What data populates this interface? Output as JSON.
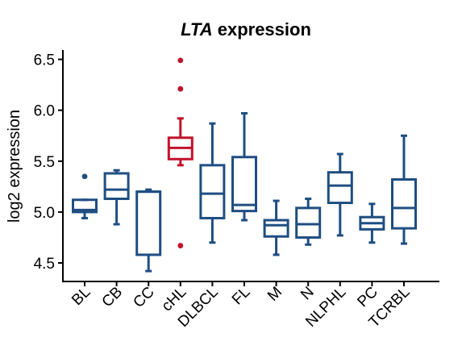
{
  "chart_data": {
    "type": "box",
    "title_gene": "LTA",
    "title_rest": "expression",
    "xlabel": "",
    "ylabel": "log2 expression",
    "ylim": [
      4.4,
      6.62
    ],
    "yticks": [
      "4.5",
      "5.0",
      "5.5",
      "6.0",
      "6.5"
    ],
    "ytick_values": [
      4.5,
      5.0,
      5.5,
      6.0,
      6.5
    ],
    "grid": false,
    "colors": {
      "default": "#1f4e82",
      "highlight": "#c0132c",
      "axis": "#000000"
    },
    "categories": [
      "BL",
      "CB",
      "CC",
      "cHL",
      "DLBCL",
      "FL",
      "M",
      "N",
      "NLPHL",
      "PC",
      "TCRBL"
    ],
    "boxes": [
      {
        "label": "BL",
        "whisker_low": 4.94,
        "q1": 5.0,
        "median": 5.02,
        "q3": 5.12,
        "whisker_high": 5.12,
        "outliers": [
          5.35
        ],
        "highlight": false
      },
      {
        "label": "CB",
        "whisker_low": 4.88,
        "q1": 5.13,
        "median": 5.22,
        "q3": 5.38,
        "whisker_high": 5.41,
        "outliers": [],
        "highlight": false
      },
      {
        "label": "CC",
        "whisker_low": 4.42,
        "q1": 4.58,
        "median": 5.2,
        "q3": 5.2,
        "whisker_high": 5.22,
        "outliers": [],
        "highlight": false
      },
      {
        "label": "cHL",
        "whisker_low": 5.46,
        "q1": 5.52,
        "median": 5.63,
        "q3": 5.73,
        "whisker_high": 5.92,
        "outliers": [
          6.49,
          6.21,
          4.67
        ],
        "highlight": true
      },
      {
        "label": "DLBCL",
        "whisker_low": 4.7,
        "q1": 4.94,
        "median": 5.18,
        "q3": 5.46,
        "whisker_high": 5.87,
        "outliers": [],
        "highlight": false
      },
      {
        "label": "FL",
        "whisker_low": 4.92,
        "q1": 5.01,
        "median": 5.07,
        "q3": 5.54,
        "whisker_high": 5.97,
        "outliers": [],
        "highlight": false
      },
      {
        "label": "M",
        "whisker_low": 4.58,
        "q1": 4.76,
        "median": 4.87,
        "q3": 4.92,
        "whisker_high": 5.11,
        "outliers": [],
        "highlight": false
      },
      {
        "label": "N",
        "whisker_low": 4.68,
        "q1": 4.75,
        "median": 4.88,
        "q3": 5.04,
        "whisker_high": 5.13,
        "outliers": [],
        "highlight": false
      },
      {
        "label": "NLPHL",
        "whisker_low": 4.77,
        "q1": 5.09,
        "median": 5.26,
        "q3": 5.39,
        "whisker_high": 5.57,
        "outliers": [],
        "highlight": false
      },
      {
        "label": "PC",
        "whisker_low": 4.7,
        "q1": 4.83,
        "median": 4.89,
        "q3": 4.95,
        "whisker_high": 5.08,
        "outliers": [],
        "highlight": false
      },
      {
        "label": "TCRBL",
        "whisker_low": 4.69,
        "q1": 4.84,
        "median": 5.04,
        "q3": 5.32,
        "whisker_high": 5.75,
        "outliers": [],
        "highlight": false
      }
    ]
  }
}
